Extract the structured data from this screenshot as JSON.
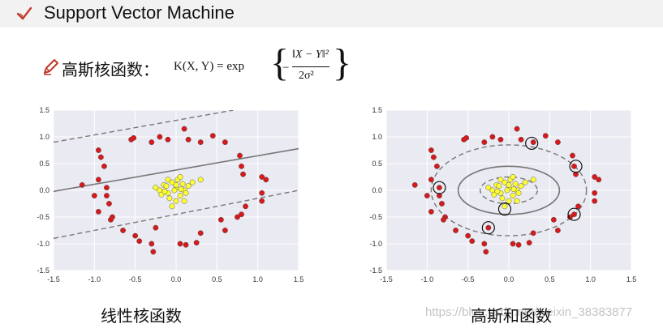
{
  "header": {
    "title": "Support Vector Machine",
    "icon": "check-icon",
    "accent": "#c0392b"
  },
  "kernel_label": "高斯核函数：",
  "formula": {
    "lhs": "K(X, Y) = exp",
    "numerator": "‖X − Y‖²",
    "denominator": "2σ²",
    "minus": "−"
  },
  "captions": {
    "left": "线性核函数",
    "right": "高斯和函数"
  },
  "watermark": "https://blog.csdn.net/weixin_38383877",
  "colors": {
    "plot_bg": "#eaeaf2",
    "red_points": "#d7191c",
    "yellow_points": "#ffff33",
    "boundary": "#777777"
  },
  "chart_data": [
    {
      "type": "scatter",
      "title": "",
      "xlabel": "",
      "ylabel": "",
      "xlim": [
        -1.5,
        1.5
      ],
      "ylim": [
        -1.5,
        1.5
      ],
      "x_ticks": [
        "-1.5",
        "-1.0",
        "-0.5",
        "0.0",
        "0.5",
        "1.0",
        "1.5"
      ],
      "y_ticks": [
        "1.5",
        "1.0",
        "0.5",
        "0.0",
        "-0.5",
        "-1.0",
        "-1.5"
      ],
      "grid": true,
      "series": [
        {
          "color": "#d7191c",
          "points": [
            [
              -1.15,
              0.1
            ],
            [
              -0.95,
              0.75
            ],
            [
              -0.92,
              0.62
            ],
            [
              -0.88,
              0.45
            ],
            [
              -0.95,
              0.2
            ],
            [
              -1.0,
              -0.1
            ],
            [
              -0.85,
              0.05
            ],
            [
              -0.82,
              -0.25
            ],
            [
              -0.78,
              -0.5
            ],
            [
              -0.8,
              -0.55
            ],
            [
              -0.65,
              -0.75
            ],
            [
              -0.5,
              -0.85
            ],
            [
              -0.45,
              -0.95
            ],
            [
              -0.3,
              -1.0
            ],
            [
              -0.28,
              -1.15
            ],
            [
              -0.25,
              -0.7
            ],
            [
              -0.95,
              -0.4
            ],
            [
              -0.55,
              0.95
            ],
            [
              -0.52,
              0.98
            ],
            [
              -0.3,
              0.9
            ],
            [
              -0.2,
              1.0
            ],
            [
              -0.1,
              0.95
            ],
            [
              0.1,
              1.15
            ],
            [
              0.15,
              0.95
            ],
            [
              0.3,
              0.9
            ],
            [
              0.45,
              1.02
            ],
            [
              0.6,
              0.9
            ],
            [
              0.78,
              0.65
            ],
            [
              0.8,
              0.45
            ],
            [
              0.82,
              0.3
            ],
            [
              1.05,
              0.25
            ],
            [
              1.1,
              0.2
            ],
            [
              1.05,
              -0.05
            ],
            [
              1.05,
              -0.2
            ],
            [
              0.85,
              -0.3
            ],
            [
              0.8,
              -0.45
            ],
            [
              0.75,
              -0.5
            ],
            [
              0.55,
              -0.55
            ],
            [
              0.6,
              -0.75
            ],
            [
              0.3,
              -0.8
            ],
            [
              0.05,
              -1.0
            ],
            [
              0.12,
              -1.02
            ],
            [
              0.25,
              -0.98
            ],
            [
              -0.85,
              -0.1
            ]
          ]
        },
        {
          "color": "#ffff33",
          "points": [
            [
              -0.2,
              0.0
            ],
            [
              -0.15,
              0.1
            ],
            [
              -0.1,
              -0.05
            ],
            [
              -0.05,
              0.15
            ],
            [
              0.0,
              0.05
            ],
            [
              0.05,
              -0.1
            ],
            [
              0.1,
              0.0
            ],
            [
              -0.08,
              -0.15
            ],
            [
              0.02,
              0.2
            ],
            [
              -0.12,
              0.08
            ],
            [
              0.08,
              0.12
            ],
            [
              0.0,
              -0.2
            ],
            [
              -0.02,
              0.0
            ],
            [
              0.12,
              -0.05
            ],
            [
              -0.18,
              -0.08
            ],
            [
              -0.25,
              0.05
            ],
            [
              0.15,
              0.08
            ],
            [
              0.05,
              0.25
            ],
            [
              -0.05,
              -0.3
            ],
            [
              0.2,
              0.15
            ],
            [
              0.1,
              -0.2
            ],
            [
              -0.1,
              0.2
            ],
            [
              0.0,
              0.1
            ],
            [
              0.06,
              0.02
            ],
            [
              -0.14,
              -0.02
            ],
            [
              0.3,
              0.2
            ]
          ]
        }
      ],
      "lines": [
        {
          "style": "solid",
          "x": [
            -1.5,
            1.5
          ],
          "y": [
            -0.02,
            0.78
          ]
        },
        {
          "style": "dashed",
          "x": [
            -1.5,
            0.7
          ],
          "y": [
            0.9,
            1.5
          ]
        },
        {
          "style": "dashed",
          "x": [
            -1.5,
            1.5
          ],
          "y": [
            -0.9,
            0.0
          ]
        }
      ]
    },
    {
      "type": "scatter",
      "title": "",
      "xlabel": "",
      "ylabel": "",
      "xlim": [
        -1.5,
        1.5
      ],
      "ylim": [
        -1.5,
        1.5
      ],
      "x_ticks": [
        "-1.5",
        "-1.0",
        "-0.5",
        "0.0",
        "0.5",
        "1.0",
        "1.5"
      ],
      "y_ticks": [
        "1.5",
        "1.0",
        "0.5",
        "0.0",
        "-0.5",
        "-1.0",
        "-1.5"
      ],
      "grid": true,
      "series": [
        {
          "color": "#d7191c",
          "points": [
            [
              -1.15,
              0.1
            ],
            [
              -0.95,
              0.75
            ],
            [
              -0.92,
              0.62
            ],
            [
              -0.88,
              0.45
            ],
            [
              -0.95,
              0.2
            ],
            [
              -1.0,
              -0.1
            ],
            [
              -0.85,
              0.05
            ],
            [
              -0.82,
              -0.25
            ],
            [
              -0.78,
              -0.5
            ],
            [
              -0.8,
              -0.55
            ],
            [
              -0.65,
              -0.75
            ],
            [
              -0.5,
              -0.85
            ],
            [
              -0.45,
              -0.95
            ],
            [
              -0.3,
              -1.0
            ],
            [
              -0.28,
              -1.15
            ],
            [
              -0.25,
              -0.7
            ],
            [
              -0.95,
              -0.4
            ],
            [
              -0.55,
              0.95
            ],
            [
              -0.52,
              0.98
            ],
            [
              -0.3,
              0.9
            ],
            [
              -0.2,
              1.0
            ],
            [
              -0.1,
              0.95
            ],
            [
              0.1,
              1.15
            ],
            [
              0.15,
              0.95
            ],
            [
              0.3,
              0.9
            ],
            [
              0.45,
              1.02
            ],
            [
              0.6,
              0.9
            ],
            [
              0.78,
              0.65
            ],
            [
              0.8,
              0.45
            ],
            [
              0.82,
              0.3
            ],
            [
              1.05,
              0.25
            ],
            [
              1.1,
              0.2
            ],
            [
              1.05,
              -0.05
            ],
            [
              1.05,
              -0.2
            ],
            [
              0.85,
              -0.3
            ],
            [
              0.8,
              -0.45
            ],
            [
              0.75,
              -0.5
            ],
            [
              0.55,
              -0.55
            ],
            [
              0.6,
              -0.75
            ],
            [
              0.3,
              -0.8
            ],
            [
              0.05,
              -1.0
            ],
            [
              0.12,
              -1.02
            ],
            [
              0.25,
              -0.98
            ],
            [
              -0.85,
              -0.1
            ]
          ]
        },
        {
          "color": "#ffff33",
          "points": [
            [
              -0.2,
              0.0
            ],
            [
              -0.15,
              0.1
            ],
            [
              -0.1,
              -0.05
            ],
            [
              -0.05,
              0.15
            ],
            [
              0.0,
              0.05
            ],
            [
              0.05,
              -0.1
            ],
            [
              0.1,
              0.0
            ],
            [
              -0.08,
              -0.15
            ],
            [
              0.02,
              0.2
            ],
            [
              -0.12,
              0.08
            ],
            [
              0.08,
              0.12
            ],
            [
              0.0,
              -0.2
            ],
            [
              -0.02,
              0.0
            ],
            [
              0.12,
              -0.05
            ],
            [
              -0.18,
              -0.08
            ],
            [
              -0.25,
              0.05
            ],
            [
              0.15,
              0.08
            ],
            [
              0.05,
              0.25
            ],
            [
              -0.05,
              -0.3
            ],
            [
              0.2,
              0.15
            ],
            [
              0.1,
              -0.2
            ],
            [
              -0.1,
              0.2
            ],
            [
              0.0,
              0.1
            ],
            [
              0.06,
              0.02
            ],
            [
              -0.14,
              -0.02
            ],
            [
              0.3,
              0.2
            ]
          ]
        }
      ],
      "support_vectors": [
        [
          -0.85,
          0.05
        ],
        [
          0.28,
          0.88
        ],
        [
          0.82,
          0.45
        ],
        [
          -0.25,
          -0.7
        ],
        [
          0.8,
          -0.45
        ],
        [
          -0.05,
          -0.35
        ]
      ],
      "ellipses": [
        {
          "style": "solid",
          "cx": 0.0,
          "cy": 0.0,
          "rx": 0.62,
          "ry": 0.45
        },
        {
          "style": "dashed",
          "cx": 0.0,
          "cy": 0.0,
          "rx": 0.95,
          "ry": 0.85
        },
        {
          "style": "dashed",
          "cx": 0.0,
          "cy": 0.0,
          "rx": 0.35,
          "ry": 0.25
        }
      ]
    }
  ]
}
